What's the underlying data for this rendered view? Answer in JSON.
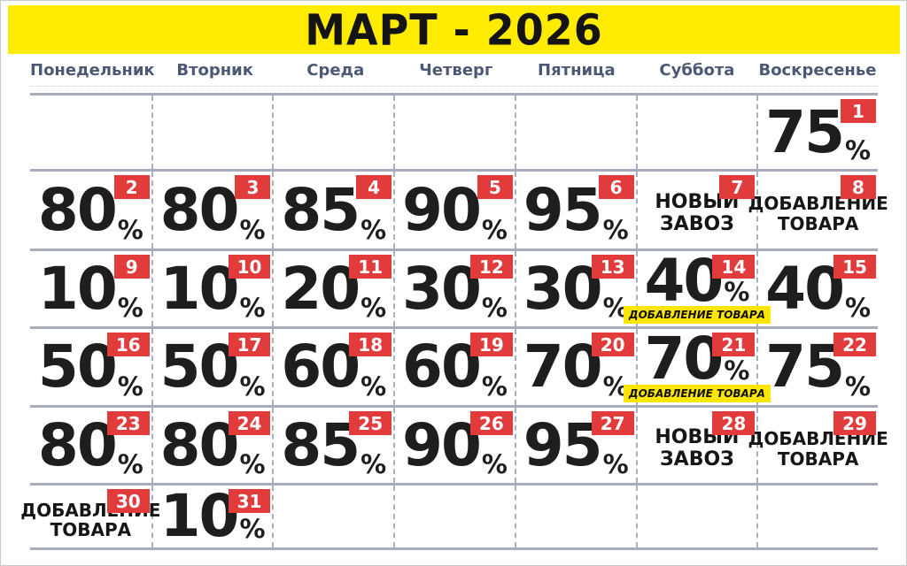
{
  "header": {
    "title": "МАРТ - 2026"
  },
  "weekdays": [
    "Понедельник",
    "Вторник",
    "Среда",
    "Четверг",
    "Пятница",
    "Суббота",
    "Воскресенье"
  ],
  "misc": {
    "percent_sign": "%"
  },
  "colors": {
    "banner_yellow": "#ffec00",
    "badge_red": "#e23b3c",
    "highlight_yellow": "#ffe600",
    "weekday_blue": "#4d5874",
    "number_black": "#1e1e1e",
    "grid_line_grey": "#a6abbd"
  },
  "weeks": [
    [
      {},
      {},
      {},
      {},
      {},
      {},
      {
        "day": "1",
        "percent": "75"
      }
    ],
    [
      {
        "day": "2",
        "percent": "80"
      },
      {
        "day": "3",
        "percent": "80"
      },
      {
        "day": "4",
        "percent": "85"
      },
      {
        "day": "5",
        "percent": "90"
      },
      {
        "day": "6",
        "percent": "95"
      },
      {
        "day": "7",
        "note_lines": [
          "НОВЫЙ",
          "ЗАВОЗ"
        ]
      },
      {
        "day": "8",
        "note_lines": [
          "ДОБАВЛЕНИЕ",
          "ТОВАРА"
        ]
      }
    ],
    [
      {
        "day": "9",
        "percent": "10"
      },
      {
        "day": "10",
        "percent": "10"
      },
      {
        "day": "11",
        "percent": "20"
      },
      {
        "day": "12",
        "percent": "30"
      },
      {
        "day": "13",
        "percent": "30"
      },
      {
        "day": "14",
        "percent": "40",
        "highlight": "ДОБАВЛЕНИЕ ТОВАРА"
      },
      {
        "day": "15",
        "percent": "40"
      }
    ],
    [
      {
        "day": "16",
        "percent": "50"
      },
      {
        "day": "17",
        "percent": "50"
      },
      {
        "day": "18",
        "percent": "60"
      },
      {
        "day": "19",
        "percent": "60"
      },
      {
        "day": "20",
        "percent": "70"
      },
      {
        "day": "21",
        "percent": "70",
        "highlight": "ДОБАВЛЕНИЕ ТОВАРА"
      },
      {
        "day": "22",
        "percent": "75"
      }
    ],
    [
      {
        "day": "23",
        "percent": "80"
      },
      {
        "day": "24",
        "percent": "80"
      },
      {
        "day": "25",
        "percent": "85"
      },
      {
        "day": "26",
        "percent": "90"
      },
      {
        "day": "27",
        "percent": "95"
      },
      {
        "day": "28",
        "note_lines": [
          "НОВЫЙ",
          "ЗАВОЗ"
        ]
      },
      {
        "day": "29",
        "note_lines": [
          "ДОБАВЛЕНИЕ",
          "ТОВАРА"
        ]
      }
    ],
    [
      {
        "day": "30",
        "note_lines": [
          "ДОБАВЛЕНИЕ",
          "ТОВАРА"
        ]
      },
      {
        "day": "31",
        "percent": "10"
      },
      {},
      {},
      {},
      {},
      {}
    ]
  ]
}
